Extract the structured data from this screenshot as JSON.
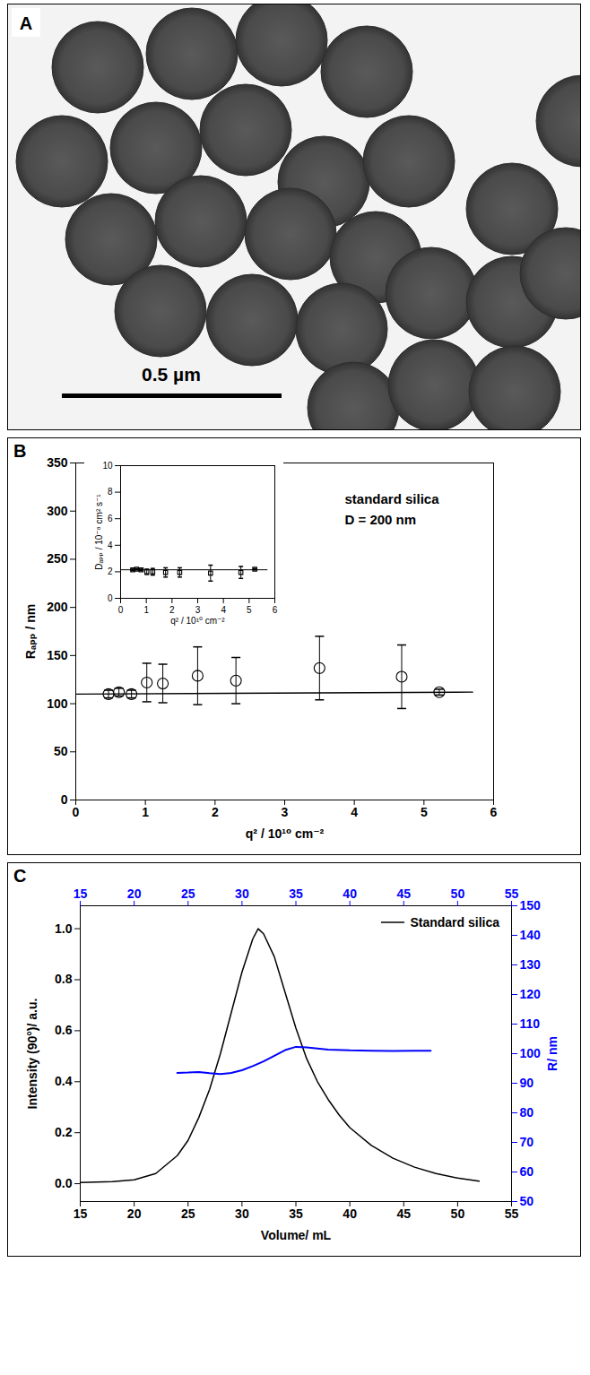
{
  "chart_data": [
    {
      "type": "image",
      "panel_label": "A",
      "annotations": [
        "0.5 µm"
      ]
    },
    {
      "type": "scatter",
      "panel_label": "B",
      "xlabel": "q² / 10¹⁰ cm⁻²",
      "ylabel": "Rₐₚₚ / nm",
      "xlim": [
        0,
        6
      ],
      "xticks": [
        0,
        1,
        2,
        3,
        4,
        5,
        6
      ],
      "ylim": [
        0,
        350
      ],
      "yticks": [
        0,
        50,
        100,
        150,
        200,
        250,
        300,
        350
      ],
      "annotations": [
        "standard silica",
        "D = 200 nm"
      ],
      "series": [
        {
          "type": "scatter",
          "marker": "circle",
          "color": "#000000",
          "x": [
            0.47,
            0.62,
            0.8,
            1.02,
            1.25,
            1.75,
            2.3,
            3.5,
            4.68,
            5.22
          ],
          "values": [
            110,
            112,
            110,
            122,
            121,
            129,
            124,
            137,
            128,
            112
          ],
          "errors": [
            4,
            4,
            4,
            20,
            20,
            30,
            24,
            33,
            33,
            3
          ]
        },
        {
          "type": "line",
          "color": "#000000",
          "x": [
            0,
            5.7
          ],
          "values": [
            110,
            112
          ]
        }
      ],
      "inset": {
        "type": "scatter",
        "xlabel": "q² / 10¹⁰ cm⁻²",
        "ylabel": "Dₐₚₚ / 10⁻⁸ cm² s⁻¹",
        "xlim": [
          0,
          6
        ],
        "xticks": [
          0,
          1,
          2,
          3,
          4,
          5,
          6
        ],
        "ylim": [
          0,
          10
        ],
        "yticks": [
          0,
          2,
          4,
          6,
          8,
          10
        ],
        "series": [
          {
            "type": "scatter",
            "marker": "square",
            "color": "#000000",
            "x": [
              0.47,
              0.62,
              0.8,
              1.02,
              1.25,
              1.75,
              2.3,
              3.5,
              4.68,
              5.22
            ],
            "values": [
              2.15,
              2.2,
              2.15,
              2.0,
              2.0,
              1.95,
              1.95,
              1.9,
              1.95,
              2.2
            ],
            "errors": [
              0.05,
              0.05,
              0.05,
              0.2,
              0.25,
              0.35,
              0.35,
              0.6,
              0.45,
              0.05
            ]
          },
          {
            "type": "line",
            "color": "#000000",
            "x": [
              0,
              5.7
            ],
            "values": [
              2.15,
              2.15
            ]
          }
        ]
      }
    },
    {
      "type": "line",
      "panel_label": "C",
      "xlabel": "Volume/ mL",
      "ylabel": "Intensity (90°)/ a.u.",
      "y2label": "R/ nm",
      "xlim": [
        15,
        55
      ],
      "xticks": [
        15,
        20,
        25,
        30,
        35,
        40,
        45,
        50,
        55
      ],
      "x2lim": [
        15,
        55
      ],
      "x2ticks": [
        15,
        20,
        25,
        30,
        35,
        40,
        45,
        50,
        55
      ],
      "ylim": [
        -0.07,
        1.09
      ],
      "yticks": [
        {
          "value": 0,
          "label": "0.0"
        },
        {
          "value": 0.2,
          "label": "0.2"
        },
        {
          "value": 0.4,
          "label": "0.4"
        },
        {
          "value": 0.6,
          "label": "0.6"
        },
        {
          "value": 0.8,
          "label": "0.8"
        },
        {
          "value": 1,
          "label": "1.0"
        }
      ],
      "y2lim": [
        50,
        150
      ],
      "y2ticks": [
        50,
        60,
        70,
        80,
        90,
        100,
        110,
        120,
        130,
        140,
        150
      ],
      "legend": "upper right",
      "series": [
        {
          "name": "Standard silica",
          "color": "#000000",
          "x": [
            15,
            18,
            20,
            22,
            24,
            25,
            26,
            27,
            28,
            29,
            30,
            31,
            31.5,
            32,
            33,
            34,
            35,
            36,
            37,
            38,
            39,
            40,
            42,
            44,
            46,
            48,
            50,
            52
          ],
          "values": [
            0.005,
            0.008,
            0.015,
            0.04,
            0.11,
            0.17,
            0.26,
            0.37,
            0.51,
            0.67,
            0.83,
            0.96,
            1.0,
            0.98,
            0.89,
            0.75,
            0.61,
            0.49,
            0.4,
            0.33,
            0.27,
            0.22,
            0.15,
            0.1,
            0.065,
            0.04,
            0.022,
            0.01
          ]
        },
        {
          "axis": "y2",
          "color": "#0000ff",
          "x": [
            24,
            25,
            26,
            27,
            28,
            29,
            30,
            31,
            32,
            33,
            34,
            35,
            36,
            38,
            40,
            42,
            44,
            46,
            47.5
          ],
          "values": [
            93.5,
            93.6,
            93.8,
            93.4,
            93.1,
            93.5,
            94.4,
            95.8,
            97.4,
            99.3,
            101.2,
            102.3,
            102.1,
            101.4,
            101.1,
            101.0,
            100.9,
            101.0,
            101.0
          ]
        }
      ]
    }
  ]
}
